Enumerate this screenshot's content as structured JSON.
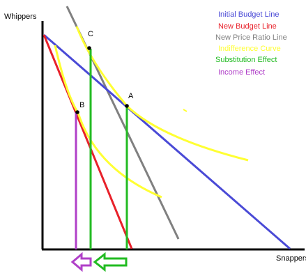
{
  "axes": {
    "y_label": "Whippers",
    "x_label": "Snappers"
  },
  "points": {
    "a": "A",
    "b": "B",
    "c": "C"
  },
  "legend": [
    {
      "key": "initial_budget",
      "label": "Initial Budget Line",
      "color": "#4a4ad6"
    },
    {
      "key": "new_budget",
      "label": "New Budget Line",
      "color": "#e8212a"
    },
    {
      "key": "new_price_ratio",
      "label": "New Price Ratio Line",
      "color": "#808080"
    },
    {
      "key": "indifference",
      "label": "Indifference Curve",
      "color": "#ffff33"
    },
    {
      "key": "substitution",
      "label": "Substitution Effect",
      "color": "#22bb22"
    },
    {
      "key": "income",
      "label": "Income Effect",
      "color": "#b040c8"
    }
  ],
  "colors": {
    "axis": "#000000",
    "initial_budget": "#4a4ad6",
    "new_budget": "#e8212a",
    "new_price_ratio": "#808080",
    "indifference": "#ffff33",
    "substitution": "#22bb22",
    "income": "#b040c8"
  }
}
